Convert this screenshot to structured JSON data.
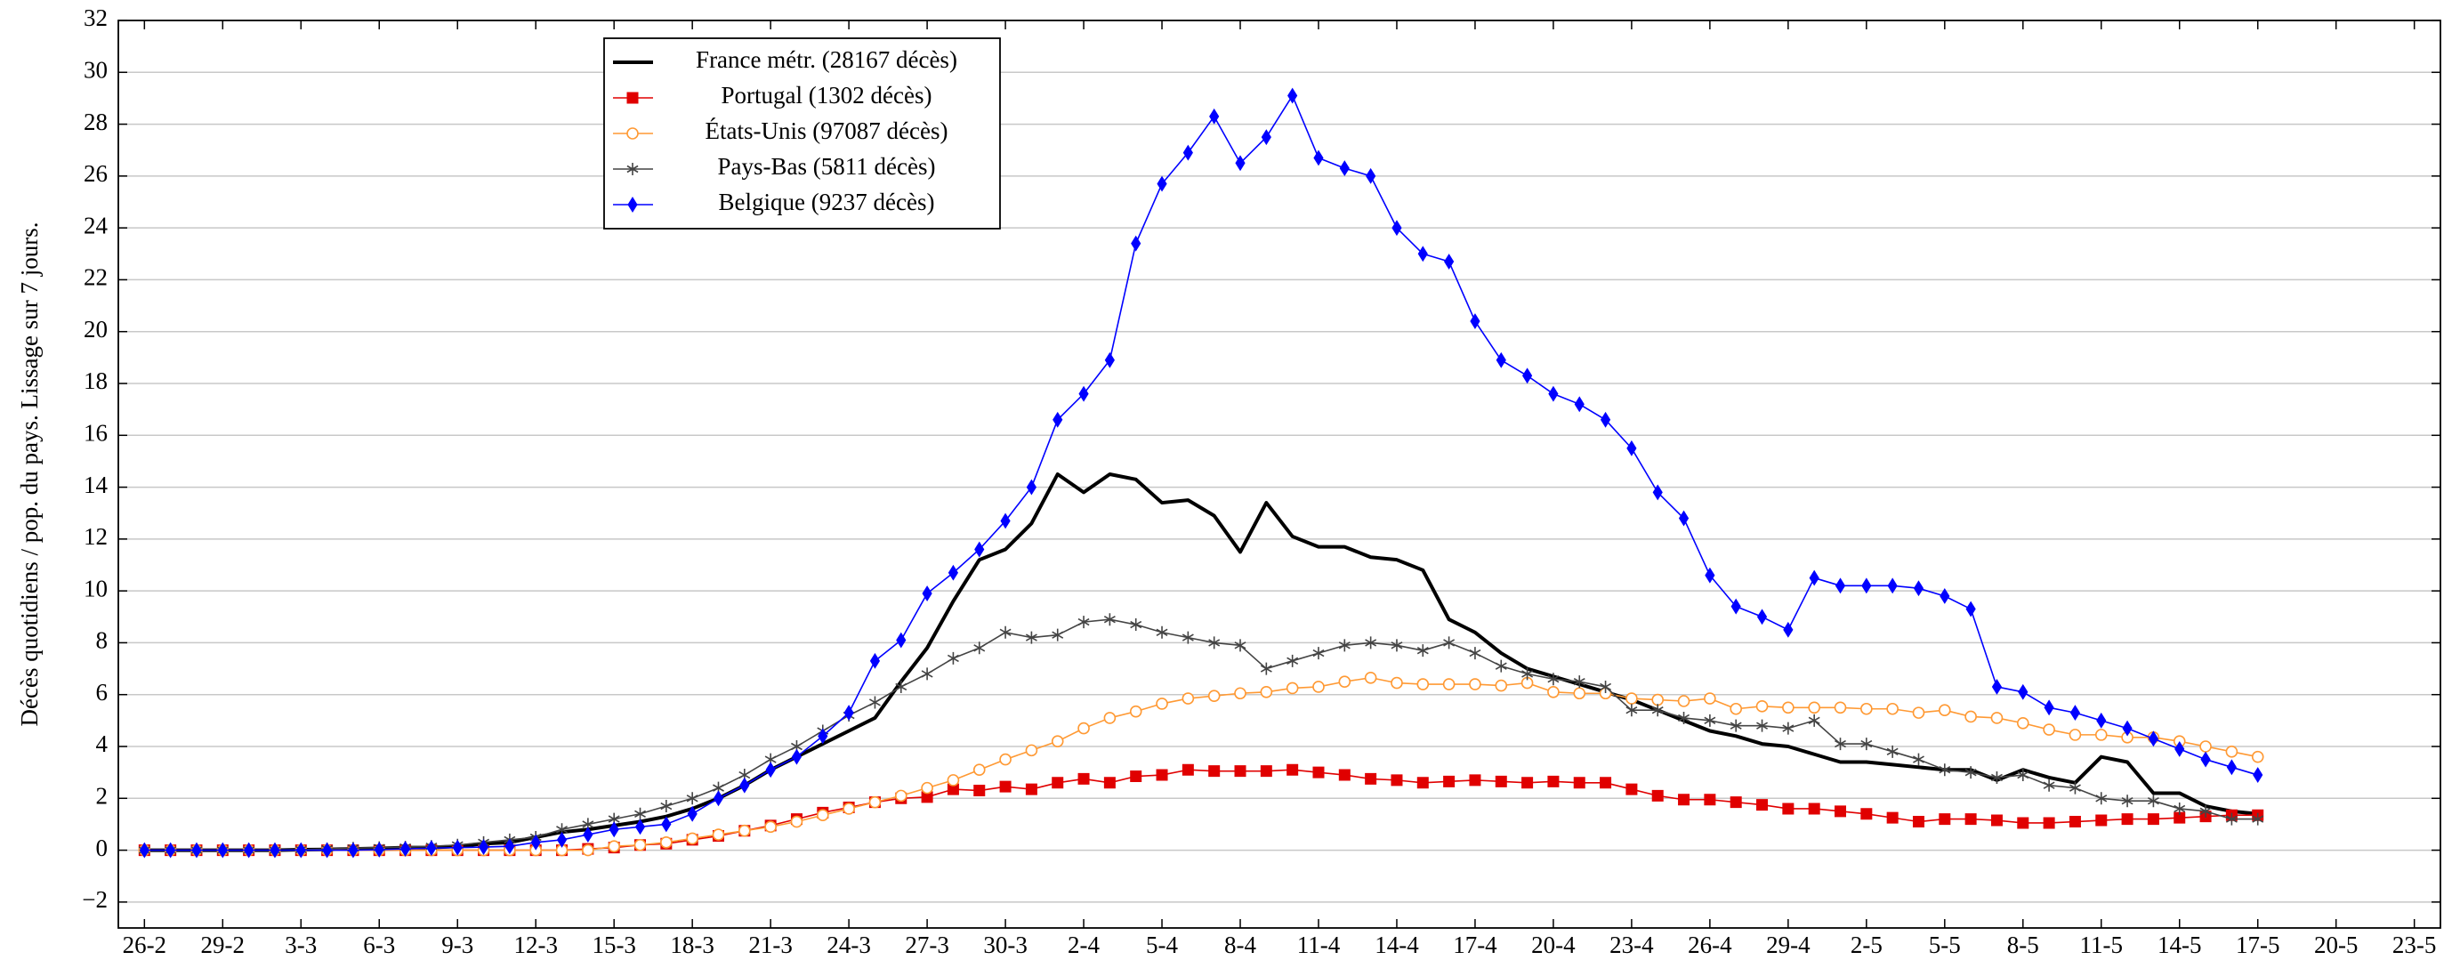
{
  "chart_data": {
    "type": "line",
    "y_label": "Décès quotidiens / pop. du pays. Lissage sur 7 jours.",
    "categories": [
      "26-2",
      null,
      null,
      "29-2",
      null,
      null,
      "3-3",
      null,
      null,
      "6-3",
      null,
      null,
      "9-3",
      null,
      null,
      "12-3",
      null,
      null,
      "15-3",
      null,
      null,
      "18-3",
      null,
      null,
      "21-3",
      null,
      null,
      "24-3",
      null,
      null,
      "27-3",
      null,
      null,
      "30-3",
      null,
      null,
      "2-4",
      null,
      null,
      "5-4",
      null,
      null,
      "8-4",
      null,
      null,
      "11-4",
      null,
      null,
      "14-4",
      null,
      null,
      "17-4",
      null,
      null,
      "20-4",
      null,
      null,
      "23-4",
      null,
      null,
      "26-4",
      null,
      null,
      "29-4",
      null,
      null,
      "2-5",
      null,
      null,
      "5-5",
      null,
      null,
      "8-5",
      null,
      null,
      "11-5",
      null,
      null,
      "14-5",
      null,
      null,
      "17-5",
      null,
      null,
      "20-5",
      null,
      null,
      "23-5"
    ],
    "ylim": [
      -3,
      32
    ],
    "yticks": [
      {
        "value": -2,
        "label": "−2"
      },
      0,
      2,
      4,
      6,
      8,
      10,
      12,
      14,
      16,
      18,
      20,
      22,
      24,
      26,
      28,
      30,
      32
    ],
    "grid": true,
    "legend_loc": "upper left",
    "series": [
      {
        "name": "France métr. (28167 décès)",
        "color": "#000000",
        "marker": "none",
        "values": [
          0,
          0,
          0,
          0,
          0,
          0,
          0.02,
          0.03,
          0.05,
          0.07,
          0.1,
          0.1,
          0.15,
          0.25,
          0.3,
          0.5,
          0.7,
          0.8,
          0.95,
          1.1,
          1.3,
          1.6,
          2.0,
          2.5,
          3.1,
          3.6,
          4.1,
          4.6,
          5.1,
          6.5,
          7.8,
          9.6,
          11.2,
          11.6,
          12.6,
          14.5,
          13.8,
          14.5,
          14.3,
          13.4,
          13.5,
          12.9,
          11.5,
          13.4,
          12.1,
          11.7,
          11.7,
          11.3,
          11.2,
          10.8,
          8.9,
          8.4,
          7.6,
          7.0,
          6.7,
          6.4,
          6.1,
          5.8,
          5.4,
          5.0,
          4.6,
          4.4,
          4.1,
          4.0,
          3.7,
          3.4,
          3.4,
          3.3,
          3.2,
          3.1,
          3.1,
          2.7,
          3.1,
          2.8,
          2.6,
          3.6,
          3.4,
          2.2,
          2.2,
          1.7,
          1.5,
          1.4,
          null,
          null,
          null,
          null,
          null,
          null
        ]
      },
      {
        "name": "Portugal (1302 décès)",
        "color": "#e00000",
        "marker": "square",
        "values": [
          0,
          0,
          0,
          0,
          0,
          0,
          0,
          0,
          0,
          0,
          0,
          0,
          0,
          0,
          0,
          0,
          0,
          0.05,
          0.1,
          0.2,
          0.25,
          0.4,
          0.55,
          0.75,
          0.95,
          1.2,
          1.45,
          1.65,
          1.85,
          2.0,
          2.05,
          2.35,
          2.3,
          2.45,
          2.35,
          2.6,
          2.75,
          2.6,
          2.85,
          2.9,
          3.1,
          3.05,
          3.05,
          3.05,
          3.1,
          3.0,
          2.9,
          2.75,
          2.7,
          2.6,
          2.65,
          2.7,
          2.65,
          2.6,
          2.65,
          2.6,
          2.6,
          2.35,
          2.1,
          1.95,
          1.95,
          1.85,
          1.75,
          1.6,
          1.6,
          1.5,
          1.4,
          1.25,
          1.1,
          1.2,
          1.2,
          1.15,
          1.05,
          1.05,
          1.1,
          1.15,
          1.2,
          1.2,
          1.25,
          1.3,
          1.35,
          1.35,
          null,
          null,
          null,
          null,
          null,
          null
        ]
      },
      {
        "name": "États-Unis (97087 décès)",
        "color": "#ff9933",
        "marker": "circle",
        "values": [
          0,
          0,
          0,
          0,
          0,
          0,
          0,
          0,
          0,
          0,
          0,
          0,
          0,
          0,
          0,
          0,
          0,
          0,
          0.15,
          0.2,
          0.3,
          0.45,
          0.6,
          0.75,
          0.9,
          1.1,
          1.35,
          1.6,
          1.85,
          2.1,
          2.4,
          2.7,
          3.1,
          3.5,
          3.85,
          4.2,
          4.7,
          5.1,
          5.35,
          5.65,
          5.85,
          5.95,
          6.05,
          6.1,
          6.25,
          6.3,
          6.5,
          6.65,
          6.45,
          6.4,
          6.4,
          6.4,
          6.35,
          6.45,
          6.1,
          6.05,
          6.05,
          5.85,
          5.8,
          5.75,
          5.85,
          5.45,
          5.55,
          5.5,
          5.5,
          5.5,
          5.45,
          5.45,
          5.3,
          5.4,
          5.15,
          5.1,
          4.9,
          4.65,
          4.45,
          4.45,
          4.35,
          4.35,
          4.2,
          4.0,
          3.8,
          3.6,
          null,
          null,
          null,
          null,
          null,
          null
        ]
      },
      {
        "name": "Pays-Bas (5811 décès)",
        "color": "#444444",
        "marker": "star",
        "values": [
          0,
          0,
          0,
          0,
          0,
          0,
          0.02,
          0.05,
          0.08,
          0.1,
          0.12,
          0.15,
          0.2,
          0.3,
          0.4,
          0.5,
          0.8,
          1.0,
          1.2,
          1.4,
          1.7,
          2.0,
          2.4,
          2.9,
          3.5,
          4.0,
          4.6,
          5.2,
          5.7,
          6.3,
          6.8,
          7.4,
          7.8,
          8.4,
          8.2,
          8.3,
          8.8,
          8.9,
          8.7,
          8.4,
          8.2,
          8.0,
          7.9,
          7.0,
          7.3,
          7.6,
          7.9,
          8.0,
          7.9,
          7.7,
          8.0,
          7.6,
          7.1,
          6.8,
          6.6,
          6.5,
          6.3,
          5.4,
          5.4,
          5.1,
          5.0,
          4.8,
          4.8,
          4.7,
          5.0,
          4.1,
          4.1,
          3.8,
          3.5,
          3.1,
          3.0,
          2.8,
          2.9,
          2.5,
          2.4,
          2.0,
          1.9,
          1.9,
          1.6,
          1.5,
          1.2,
          1.2,
          null,
          null,
          null,
          null,
          null,
          null
        ]
      },
      {
        "name": "Belgique (9237 décès)",
        "color": "#0000ff",
        "marker": "diamond",
        "values": [
          0,
          0,
          0,
          0,
          0,
          0,
          0,
          0,
          0,
          0.02,
          0.05,
          0.08,
          0.1,
          0.12,
          0.15,
          0.3,
          0.4,
          0.6,
          0.8,
          0.9,
          1.0,
          1.4,
          2.0,
          2.5,
          3.1,
          3.6,
          4.4,
          5.3,
          7.3,
          8.1,
          9.9,
          10.7,
          11.6,
          12.7,
          14.0,
          16.6,
          17.6,
          18.9,
          23.4,
          25.7,
          26.9,
          28.3,
          26.5,
          27.5,
          29.1,
          26.7,
          26.3,
          26.0,
          24.0,
          23.0,
          22.7,
          20.4,
          18.9,
          18.3,
          17.6,
          17.2,
          16.6,
          15.5,
          13.8,
          12.8,
          10.6,
          9.4,
          9.0,
          8.5,
          10.5,
          10.2,
          10.2,
          10.2,
          10.1,
          9.8,
          9.3,
          6.3,
          6.1,
          5.5,
          5.3,
          5.0,
          4.7,
          4.3,
          3.9,
          3.5,
          3.2,
          2.9,
          null,
          null,
          null,
          null,
          null,
          null
        ]
      }
    ]
  }
}
